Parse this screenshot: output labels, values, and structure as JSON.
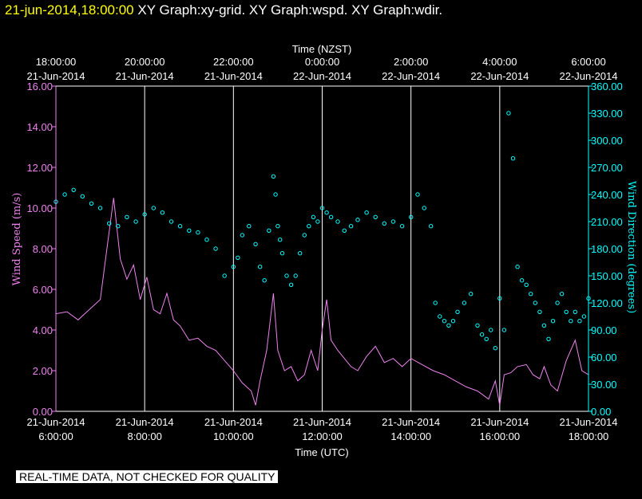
{
  "header": {
    "timestamp": "21-jun-2014,18:00:00",
    "title": "XY Graph:xy-grid.  XY Graph:wspd.  XY Graph:wdir."
  },
  "chart_data": {
    "type": "line+scatter",
    "top_axis": {
      "label": "Time (NZST)",
      "ticks": [
        {
          "time": "18:00:00",
          "date": "21-Jun-2014"
        },
        {
          "time": "20:00:00",
          "date": "21-Jun-2014"
        },
        {
          "time": "22:00:00",
          "date": "21-Jun-2014"
        },
        {
          "time": "0:00:00",
          "date": "22-Jun-2014"
        },
        {
          "time": "2:00:00",
          "date": "22-Jun-2014"
        },
        {
          "time": "4:00:00",
          "date": "22-Jun-2014"
        },
        {
          "time": "6:00:00",
          "date": "22-Jun-2014"
        }
      ]
    },
    "bottom_axis": {
      "label": "Time (UTC)",
      "ticks": [
        {
          "date": "21-Jun-2014",
          "time": "6:00:00"
        },
        {
          "date": "21-Jun-2014",
          "time": "8:00:00"
        },
        {
          "date": "21-Jun-2014",
          "time": "10:00:00"
        },
        {
          "date": "21-Jun-2014",
          "time": "12:00:00"
        },
        {
          "date": "21-Jun-2014",
          "time": "14:00:00"
        },
        {
          "date": "21-Jun-2014",
          "time": "16:00:00"
        },
        {
          "date": "21-Jun-2014",
          "time": "18:00:00"
        }
      ]
    },
    "x_hours_utc": [
      6,
      18
    ],
    "left_axis": {
      "label": "Wind Speed (m/s)",
      "ylim": [
        0,
        16
      ],
      "ticks": [
        "0.00",
        "2.00",
        "4.00",
        "6.00",
        "8.00",
        "10.00",
        "12.00",
        "14.00",
        "16.00"
      ],
      "color": "#ee82ee"
    },
    "right_axis": {
      "label": "Wind Direction (degrees)",
      "ylim": [
        0,
        360
      ],
      "ticks": [
        "0.00",
        "30.00",
        "60.00",
        "90.00",
        "120.00",
        "150.00",
        "180.00",
        "210.00",
        "240.00",
        "270.00",
        "300.00",
        "330.00",
        "360.00"
      ],
      "color": "#00ffff"
    },
    "grid": "vertical",
    "series": [
      {
        "kind": "line",
        "color": "#ee82ee",
        "axis": "left",
        "x_hours": [
          6.0,
          6.25,
          6.5,
          6.75,
          7.0,
          7.15,
          7.3,
          7.45,
          7.6,
          7.75,
          7.9,
          8.05,
          8.2,
          8.35,
          8.5,
          8.65,
          8.8,
          9.0,
          9.2,
          9.4,
          9.6,
          9.8,
          10.0,
          10.2,
          10.4,
          10.5,
          10.6,
          10.75,
          10.9,
          11.0,
          11.15,
          11.3,
          11.45,
          11.6,
          11.75,
          11.9,
          12.0,
          12.1,
          12.2,
          12.35,
          12.5,
          12.65,
          12.8,
          13.0,
          13.2,
          13.4,
          13.6,
          13.8,
          14.0,
          14.25,
          14.5,
          14.75,
          15.0,
          15.25,
          15.5,
          15.75,
          15.9,
          16.0,
          16.1,
          16.25,
          16.4,
          16.6,
          16.75,
          16.9,
          17.0,
          17.15,
          17.3,
          17.5,
          17.7,
          17.85,
          18.0
        ],
        "values": [
          4.8,
          4.9,
          4.5,
          5.0,
          5.5,
          8.0,
          10.5,
          7.5,
          6.5,
          7.2,
          5.5,
          6.6,
          5.0,
          4.8,
          5.8,
          4.5,
          4.2,
          3.5,
          3.6,
          3.2,
          3.0,
          2.5,
          2.0,
          1.4,
          1.0,
          0.3,
          1.5,
          3.0,
          5.8,
          3.0,
          2.0,
          2.2,
          1.5,
          1.8,
          3.0,
          2.0,
          4.0,
          5.5,
          3.5,
          3.0,
          2.6,
          2.2,
          2.0,
          2.7,
          3.2,
          2.4,
          2.6,
          2.2,
          2.6,
          2.3,
          2.0,
          1.8,
          1.5,
          1.2,
          1.0,
          0.6,
          1.5,
          0.3,
          1.8,
          1.9,
          2.2,
          2.3,
          1.8,
          1.6,
          2.2,
          1.3,
          1.0,
          2.5,
          3.5,
          2.0,
          1.8
        ]
      },
      {
        "kind": "scatter",
        "color": "#00ffff",
        "axis": "right",
        "x_hours": [
          6.0,
          6.2,
          6.4,
          6.6,
          6.8,
          7.0,
          7.2,
          7.4,
          7.6,
          7.8,
          8.0,
          8.2,
          8.4,
          8.6,
          8.8,
          9.0,
          9.2,
          9.4,
          9.6,
          9.8,
          10.0,
          10.1,
          10.2,
          10.35,
          10.5,
          10.6,
          10.7,
          10.8,
          10.9,
          10.95,
          11.0,
          11.05,
          11.1,
          11.2,
          11.3,
          11.4,
          11.5,
          11.6,
          11.7,
          11.8,
          11.9,
          12.0,
          12.1,
          12.2,
          12.35,
          12.5,
          12.65,
          12.8,
          13.0,
          13.2,
          13.4,
          13.6,
          13.8,
          14.0,
          14.15,
          14.3,
          14.45,
          14.55,
          14.65,
          14.75,
          14.85,
          14.95,
          15.05,
          15.2,
          15.35,
          15.5,
          15.6,
          15.7,
          15.8,
          15.9,
          16.0,
          16.1,
          16.2,
          16.3,
          16.4,
          16.5,
          16.6,
          16.7,
          16.8,
          16.9,
          17.0,
          17.1,
          17.2,
          17.3,
          17.4,
          17.5,
          17.6,
          17.7,
          17.8,
          17.9,
          18.0
        ],
        "values": [
          232,
          240,
          245,
          238,
          230,
          225,
          208,
          205,
          215,
          210,
          218,
          225,
          220,
          210,
          205,
          200,
          198,
          190,
          180,
          150,
          160,
          170,
          195,
          205,
          185,
          160,
          145,
          200,
          260,
          240,
          205,
          190,
          175,
          150,
          140,
          150,
          175,
          195,
          205,
          215,
          210,
          225,
          220,
          215,
          210,
          200,
          205,
          212,
          220,
          215,
          208,
          210,
          205,
          215,
          240,
          225,
          205,
          120,
          105,
          100,
          95,
          100,
          110,
          120,
          130,
          95,
          85,
          80,
          90,
          70,
          125,
          90,
          330,
          280,
          160,
          145,
          140,
          130,
          120,
          110,
          95,
          80,
          100,
          120,
          130,
          110,
          100,
          110,
          100,
          105,
          125
        ]
      }
    ]
  },
  "footer": {
    "note": "REAL-TIME DATA, NOT CHECKED FOR QUALITY"
  }
}
